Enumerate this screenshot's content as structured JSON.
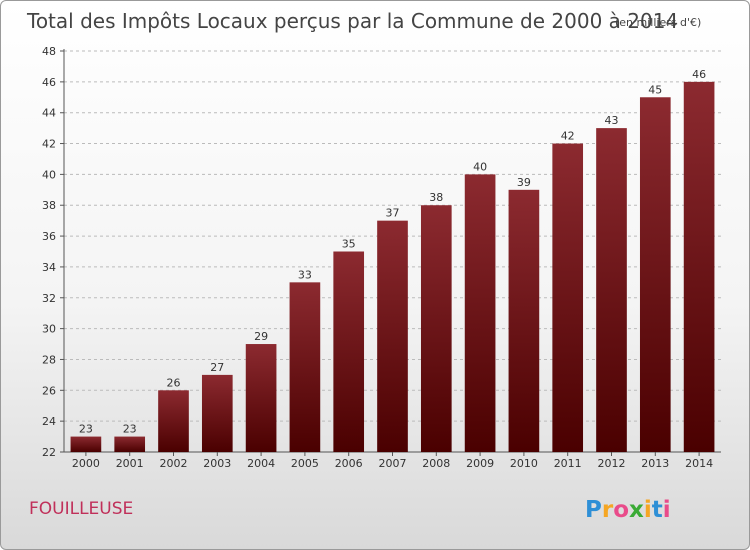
{
  "chart_data": {
    "type": "bar",
    "title": "Total des Impôts Locaux perçus par la Commune de 2000 à 2014",
    "subtitle": "(en milliers d'€)",
    "categories": [
      "2000",
      "2001",
      "2002",
      "2003",
      "2004",
      "2005",
      "2006",
      "2007",
      "2008",
      "2009",
      "2010",
      "2011",
      "2012",
      "2013",
      "2014"
    ],
    "values": [
      23,
      23,
      26,
      27,
      29,
      33,
      35,
      37,
      38,
      40,
      39,
      42,
      43,
      45,
      46
    ],
    "ylim": [
      22,
      48
    ],
    "yticks": [
      22,
      24,
      26,
      28,
      30,
      32,
      34,
      36,
      38,
      40,
      42,
      44,
      46,
      48
    ],
    "xlabel": "",
    "ylabel": "",
    "grid": "horizontal dashed",
    "bar_color": "#7a1a1e"
  },
  "commune_name": "FOUILLEUSE",
  "logo": {
    "letters": [
      "P",
      "r",
      "o",
      "x",
      "i",
      "t",
      "i"
    ],
    "colors": [
      "#2e8fd6",
      "#f5a623",
      "#e94b8a",
      "#3aaa35",
      "#f5a623",
      "#2e8fd6",
      "#e94b8a"
    ]
  }
}
